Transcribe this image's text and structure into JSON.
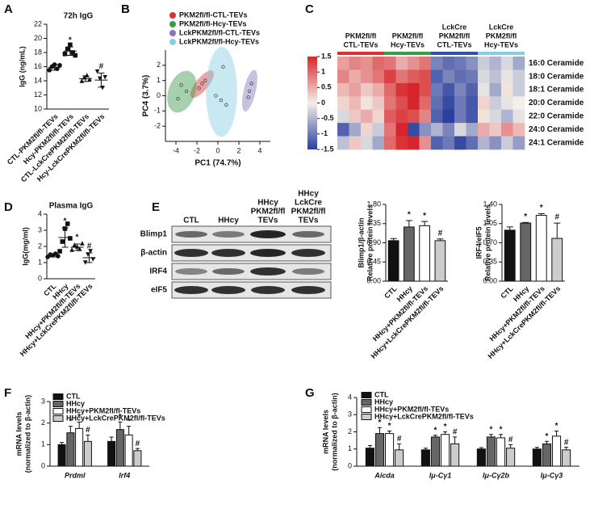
{
  "chart_data": [
    {
      "type": "dot",
      "panel": "A",
      "title": "72h IgG",
      "ylabel": "IgG (ng/mL)",
      "categories": [
        "CTL-PKM2fl/fl-TEVs",
        "Hcy-PKM2fl/fl-TEVs",
        "CTL-LckCrePKM2fl/fl-TEVs",
        "Hcy-LckCrePKM2fl/fl-TEVs"
      ],
      "values": [
        15.9,
        18.2,
        14.3,
        14.1
      ],
      "errors": [
        0.4,
        0.6,
        0.4,
        1.0
      ],
      "points": [
        [
          15.5,
          16.0,
          16.3,
          15.7,
          16.2
        ],
        [
          17.8,
          18.5,
          19.1,
          18.0,
          17.6
        ],
        [
          14.0,
          14.5,
          14.8,
          14.2
        ],
        [
          15.3,
          14.3,
          13.0,
          14.5
        ]
      ],
      "markers": [
        "circle",
        "square",
        "triangle",
        "triangle-down"
      ],
      "annotations": [
        null,
        "*",
        null,
        "#"
      ],
      "ylim": [
        10,
        22
      ],
      "yticks": [
        10,
        12,
        14,
        16,
        18,
        20,
        22
      ]
    },
    {
      "type": "scatter",
      "panel": "B",
      "xlabel": "PC1 (74.7%)",
      "ylabel": "PC4 (3.7%)",
      "series": [
        {
          "name": "PKM2fl/fl-CTL-TEVs",
          "color": "#d93232",
          "x": [
            -1.8,
            -1.5,
            -1.2
          ],
          "y": [
            0.5,
            0.8,
            1.0
          ]
        },
        {
          "name": "PKM2fl/fl-Hcy-TEVs",
          "color": "#3c9a46",
          "x": [
            -3.5,
            -3.0,
            -3.8
          ],
          "y": [
            0.7,
            0.3,
            -0.2
          ]
        },
        {
          "name": "LckPKM2fl/fl-CTL-TEVs",
          "color": "#8478bd",
          "x": [
            3.2,
            3.0,
            2.9
          ],
          "y": [
            0.8,
            0.3,
            -0.1
          ]
        },
        {
          "name": "LckPKM2fl/fl-Hcy-TEVs",
          "color": "#86cfe2",
          "x": [
            0.5,
            -0.2,
            0.3,
            0.8
          ],
          "y": [
            1.9,
            0.0,
            -0.3,
            -0.6
          ]
        }
      ],
      "xlim": [
        -5,
        5
      ],
      "xticks": [
        -4,
        -2,
        0,
        2,
        4
      ],
      "ylim": [
        -3,
        3
      ],
      "yticks": [
        -2,
        -1,
        0,
        1,
        2
      ]
    },
    {
      "type": "heatmap",
      "panel": "C",
      "groups": [
        [
          "PKM2fl/fl",
          "CTL-TEVs"
        ],
        [
          "PKM2fl/fl",
          "Hcy-TEVs"
        ],
        [
          "LckCre",
          "PKM2fl/fl",
          "CTL-TEVs"
        ],
        [
          "LckCre",
          "PKM2fl/fl",
          "Hcy-TEVs"
        ]
      ],
      "group_colors": [
        "#d93232",
        "#3c9a46",
        "#2f52a8",
        "#86cfe2"
      ],
      "rows": [
        "16:0 Ceramide",
        "18:0 Ceramide",
        "18:1 Ceramide",
        "20:0 Ceramide",
        "22:0 Ceramide",
        "24:0 Ceramide",
        "24:1 Ceramide"
      ],
      "values": [
        [
          0.6,
          0.8,
          0.7,
          1.0,
          0.9,
          0.5,
          0.7,
          0.9,
          -0.9,
          -1.1,
          -1.0,
          -0.8,
          -0.3,
          -0.5,
          -0.2,
          -0.6
        ],
        [
          0.8,
          0.5,
          0.7,
          0.9,
          1.3,
          0.9,
          1.1,
          1.2,
          -1.2,
          -0.9,
          -1.1,
          -1.0,
          -0.2,
          -0.4,
          -0.1,
          -0.3
        ],
        [
          0.4,
          0.6,
          0.3,
          0.5,
          1.0,
          1.4,
          1.5,
          1.2,
          -1.0,
          -1.3,
          -0.9,
          -1.2,
          -0.1,
          -0.6,
          0.1,
          -0.3
        ],
        [
          0.2,
          0.4,
          0.1,
          0.3,
          0.9,
          1.2,
          1.5,
          1.0,
          -1.1,
          -1.4,
          -1.0,
          -1.3,
          0.2,
          -0.3,
          -0.1,
          0.0
        ],
        [
          -0.2,
          0.3,
          0.5,
          0.2,
          1.1,
          1.3,
          1.2,
          0.8,
          -1.2,
          -1.5,
          -1.0,
          -1.3,
          0.1,
          -0.2,
          -0.5,
          -0.1
        ],
        [
          -1.2,
          -0.6,
          0.2,
          -0.3,
          0.9,
          1.5,
          -1.4,
          -0.8,
          -0.5,
          -0.9,
          -0.2,
          -0.6,
          0.5,
          0.3,
          0.7,
          0.4
        ],
        [
          -0.4,
          0.3,
          -0.2,
          -0.6,
          1.0,
          1.4,
          1.5,
          0.7,
          -1.2,
          -1.0,
          -1.4,
          -1.1,
          -0.5,
          -0.8,
          -0.3,
          -0.7
        ]
      ],
      "colors": [
        "#2b3f9e",
        "#f3efe9",
        "#d7262b"
      ],
      "clim": [
        -1.5,
        1.5
      ],
      "cticks": [
        1.5,
        1,
        0.5,
        0,
        -0.5,
        -1,
        -1.5
      ]
    },
    {
      "type": "dot",
      "panel": "D",
      "title": "Plasma IgG",
      "ylabel": "IgG(mg/ml)",
      "categories": [
        "CTL",
        "HHcy",
        "HHcy+PKM2fl/fl-TEVs",
        "HHcy+LckCrePKM2fl/fl-TEVs"
      ],
      "values": [
        1.45,
        2.55,
        1.95,
        1.3
      ],
      "errors": [
        0.1,
        0.6,
        0.2,
        0.3
      ],
      "points": [
        [
          1.35,
          1.5,
          1.45,
          1.55,
          1.4
        ],
        [
          1.7,
          2.3,
          3.1,
          3.4,
          2.5
        ],
        [
          1.8,
          2.1,
          2.0,
          1.85,
          2.2
        ],
        [
          1.0,
          1.5,
          1.7,
          1.2
        ]
      ],
      "markers": [
        "circle",
        "square",
        "triangle",
        "triangle-down"
      ],
      "annotations": [
        null,
        "*",
        "*",
        "#"
      ],
      "ylim": [
        0,
        4
      ],
      "yticks": [
        0,
        1,
        2,
        3,
        4
      ]
    },
    {
      "type": "bar",
      "ylabel": [
        "Blimp1/β-actin",
        "Relative protein levels"
      ],
      "categories": [
        "CTL",
        "HHcy",
        "HHcy+PKM2fl/fl-TEVs",
        "HHcy+LckCrePKM2fl/fl-TEVs"
      ],
      "values": [
        0.95,
        1.27,
        1.3,
        0.95
      ],
      "errors": [
        0.05,
        0.15,
        0.1,
        0.04
      ],
      "colors": [
        "#111111",
        "#666666",
        "#ffffff",
        "#cccccc"
      ],
      "annotations": [
        null,
        "*",
        "*",
        "#"
      ],
      "ylim": [
        0,
        1.8
      ],
      "yticks": [
        {
          "value": 0,
          "label": "0.00"
        },
        {
          "value": 0.45,
          "label": "0.45"
        },
        {
          "value": 0.9,
          "label": "0.90"
        },
        {
          "value": 1.35,
          "label": "1.35"
        },
        {
          "value": 1.8,
          "label": "1.80"
        }
      ]
    },
    {
      "type": "bar",
      "ylabel": [
        "IRF4/eIF5",
        "Relative protein levels"
      ],
      "categories": [
        "CTL",
        "HHcy",
        "HHcy+PKM2fl/fl-TEVs",
        "HHcy+LckCrePKM2fl/fl-TEVs"
      ],
      "values": [
        0.93,
        1.06,
        1.2,
        0.78
      ],
      "errors": [
        0.06,
        0.01,
        0.03,
        0.28
      ],
      "colors": [
        "#111111",
        "#666666",
        "#ffffff",
        "#cccccc"
      ],
      "annotations": [
        null,
        "*",
        "*",
        "#"
      ],
      "ylim": [
        0,
        1.4
      ],
      "yticks": [
        {
          "value": 0,
          "label": "0.00"
        },
        {
          "value": 0.35,
          "label": "0.35"
        },
        {
          "value": 0.7,
          "label": "0.70"
        },
        {
          "value": 1.05,
          "label": "1.05"
        },
        {
          "value": 1.4,
          "label": "1.40"
        }
      ]
    },
    {
      "type": "grouped_bar",
      "panel": "F",
      "ylabel": [
        "mRNA levels",
        "(normalized to β-actin)"
      ],
      "italic_categories": true,
      "categories": [
        "Prdml",
        "Irf4"
      ],
      "series": [
        {
          "name": "CTL",
          "color": "#111111",
          "values": [
            1.0,
            1.15
          ],
          "errors": [
            0.1,
            0.2
          ],
          "annotations": [
            null,
            null
          ]
        },
        {
          "name": "HHcy",
          "color": "#666666",
          "values": [
            1.55,
            1.7
          ],
          "errors": [
            0.3,
            0.35
          ],
          "annotations": [
            "*",
            "*"
          ]
        },
        {
          "name": "HHcy+PKM2fl/fl-TEVs",
          "color": "#ffffff",
          "values": [
            1.75,
            1.45
          ],
          "errors": [
            0.3,
            0.4
          ],
          "annotations": [
            "*",
            "*"
          ]
        },
        {
          "name": "HHcy+LckCrePKM2fl/fl-TEVs",
          "color": "#cccccc",
          "values": [
            1.15,
            0.72
          ],
          "errors": [
            0.3,
            0.1
          ],
          "annotations": [
            "#",
            "#"
          ]
        }
      ],
      "ylim": [
        0,
        3
      ],
      "yticks": [
        0,
        1,
        2,
        3
      ]
    },
    {
      "type": "grouped_bar",
      "panel": "G",
      "ylabel": [
        "mRNA levels",
        "(normalized to β-actin)"
      ],
      "italic_categories": true,
      "categories": [
        "Aicda",
        "Iμ-Cγ1",
        "Iμ-Cγ2b",
        "Iμ-Cγ3"
      ],
      "series": [
        {
          "name": "CTL",
          "color": "#111111",
          "values": [
            1.05,
            0.95,
            1.0,
            1.0
          ],
          "errors": [
            0.15,
            0.1,
            0.08,
            0.1
          ],
          "annotations": [
            null,
            null,
            null,
            null
          ]
        },
        {
          "name": "HHcy",
          "color": "#666666",
          "values": [
            1.9,
            1.7,
            1.7,
            1.3
          ],
          "errors": [
            0.35,
            0.1,
            0.15,
            0.15
          ],
          "annotations": [
            "*",
            "*",
            "*",
            "*"
          ]
        },
        {
          "name": "HHcy+PKM2fl/fl-TEVs",
          "color": "#ffffff",
          "values": [
            1.9,
            1.85,
            1.65,
            1.75
          ],
          "errors": [
            0.15,
            0.15,
            0.2,
            0.3
          ],
          "annotations": [
            "*",
            "*",
            "*",
            "*"
          ]
        },
        {
          "name": "HHcy+LckCrePKM2fl/fl-TEVs",
          "color": "#cccccc",
          "values": [
            0.95,
            1.3,
            1.05,
            0.95
          ],
          "errors": [
            0.35,
            0.4,
            0.2,
            0.15
          ],
          "annotations": [
            "#",
            "#",
            "#",
            "#"
          ]
        }
      ],
      "ylim": [
        0,
        4
      ],
      "yticks": [
        0,
        1,
        2,
        3,
        4
      ]
    }
  ],
  "blot": {
    "panel": "E",
    "lanes": [
      [
        "CTL"
      ],
      [
        "HHcy"
      ],
      [
        "HHcy",
        "PKM2fl/fl",
        "TEVs"
      ],
      [
        "HHcy",
        "LckCre",
        "PKM2fl/fl",
        "TEVs"
      ]
    ],
    "proteins": [
      "Blimp1",
      "β-actin",
      "IRF4",
      "eIF5"
    ]
  }
}
